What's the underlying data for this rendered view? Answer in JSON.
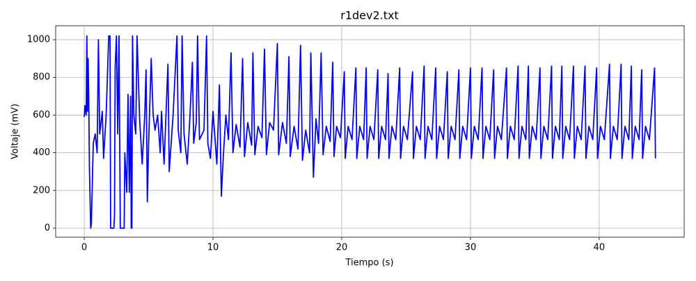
{
  "chart_data": {
    "type": "line",
    "title": "r1dev2.txt",
    "x_label": "Tiempo (s)",
    "y_label": "Voltaje (mV)",
    "grid": true,
    "xlim": [
      -2.22,
      46.6
    ],
    "ylim": [
      -48,
      1074
    ],
    "xticks": [
      0,
      10,
      20,
      30,
      40
    ],
    "yticks": [
      0,
      200,
      400,
      600,
      800,
      1000
    ],
    "series": [
      {
        "color": "#0000ff",
        "x": [
          0,
          0.05,
          0.15,
          0.2,
          0.25,
          0.3,
          0.35,
          0.4,
          0.5,
          0.55,
          0.7,
          0.85,
          1.0,
          1.1,
          1.2,
          1.4,
          1.5,
          1.7,
          1.9,
          2.0,
          2.05,
          2.3,
          2.35,
          2.4,
          2.5,
          2.6,
          2.7,
          2.8,
          3.1,
          3.15,
          3.3,
          3.4,
          3.5,
          3.6,
          3.65,
          3.7,
          3.75,
          3.85,
          4.0,
          4.1,
          4.3,
          4.5,
          4.7,
          4.8,
          4.9,
          5.0,
          5.2,
          5.35,
          5.5,
          5.7,
          5.9,
          6.0,
          6.2,
          6.5,
          6.6,
          6.9,
          7.2,
          7.3,
          7.5,
          7.6,
          7.75,
          8.0,
          8.2,
          8.4,
          8.5,
          8.7,
          8.8,
          8.95,
          9.3,
          9.5,
          9.6,
          9.8,
          10.0,
          10.3,
          10.5,
          10.65,
          10.8,
          11.0,
          11.2,
          11.4,
          11.55,
          11.8,
          12.1,
          12.3,
          12.45,
          12.7,
          13.0,
          13.1,
          13.25,
          13.5,
          13.8,
          14.0,
          14.15,
          14.4,
          14.7,
          15.0,
          15.1,
          15.4,
          15.7,
          15.9,
          16.0,
          16.3,
          16.6,
          16.8,
          16.95,
          17.2,
          17.5,
          17.6,
          17.8,
          18.0,
          18.2,
          18.4,
          18.55,
          18.8,
          19.1,
          19.3,
          19.4,
          19.6,
          19.9,
          20.2,
          20.27,
          20.5,
          20.8,
          21.1,
          21.17,
          21.4,
          21.7,
          21.9,
          21.97,
          22.2,
          22.5,
          22.8,
          22.87,
          23.1,
          23.4,
          23.6,
          23.67,
          23.9,
          24.2,
          24.5,
          24.57,
          24.8,
          25.1,
          25.5,
          25.57,
          25.8,
          26.1,
          26.4,
          26.47,
          26.7,
          27.0,
          27.3,
          27.37,
          27.6,
          27.9,
          28.2,
          28.27,
          28.5,
          28.8,
          29.1,
          29.17,
          29.4,
          29.7,
          30.0,
          30.07,
          30.3,
          30.6,
          30.9,
          30.97,
          31.2,
          31.5,
          31.8,
          31.87,
          32.1,
          32.4,
          32.8,
          32.87,
          33.1,
          33.4,
          33.7,
          33.77,
          34.0,
          34.3,
          34.5,
          34.57,
          34.8,
          35.1,
          35.4,
          35.47,
          35.7,
          36.0,
          36.3,
          36.37,
          36.6,
          36.9,
          37.1,
          37.17,
          37.4,
          37.7,
          38.0,
          38.07,
          38.3,
          38.6,
          38.9,
          38.97,
          39.2,
          39.5,
          39.8,
          39.87,
          40.1,
          40.4,
          40.8,
          40.87,
          41.1,
          41.4,
          41.7,
          41.77,
          42.0,
          42.3,
          42.5,
          42.57,
          42.8,
          43.1,
          43.3,
          43.37,
          43.6,
          43.9,
          44.3,
          44.37
        ],
        "values": [
          590,
          650,
          600,
          1020,
          620,
          900,
          680,
          330,
          0,
          20,
          450,
          500,
          400,
          1000,
          500,
          620,
          370,
          600,
          1020,
          1020,
          0,
          0,
          70,
          850,
          1020,
          500,
          1020,
          0,
          0,
          400,
          190,
          710,
          190,
          700,
          0,
          0,
          1020,
          600,
          500,
          1020,
          580,
          340,
          600,
          840,
          140,
          450,
          900,
          600,
          520,
          600,
          400,
          620,
          340,
          870,
          300,
          600,
          1020,
          520,
          400,
          1020,
          500,
          340,
          580,
          880,
          450,
          560,
          1020,
          470,
          520,
          1020,
          450,
          370,
          620,
          340,
          760,
          170,
          380,
          600,
          470,
          930,
          400,
          550,
          430,
          900,
          380,
          560,
          440,
          930,
          390,
          540,
          480,
          950,
          390,
          560,
          520,
          980,
          390,
          560,
          450,
          910,
          380,
          540,
          420,
          970,
          360,
          520,
          400,
          930,
          270,
          580,
          450,
          930,
          390,
          540,
          460,
          880,
          380,
          540,
          480,
          830,
          370,
          540,
          470,
          850,
          370,
          540,
          470,
          850,
          370,
          540,
          470,
          840,
          370,
          540,
          470,
          820,
          370,
          540,
          470,
          850,
          370,
          540,
          470,
          830,
          370,
          540,
          470,
          860,
          370,
          540,
          470,
          850,
          370,
          540,
          470,
          830,
          370,
          540,
          470,
          840,
          370,
          540,
          470,
          850,
          370,
          540,
          470,
          850,
          370,
          540,
          470,
          840,
          370,
          540,
          470,
          850,
          370,
          540,
          470,
          860,
          370,
          540,
          470,
          860,
          370,
          540,
          470,
          850,
          370,
          540,
          470,
          860,
          370,
          540,
          470,
          860,
          370,
          540,
          470,
          860,
          370,
          540,
          470,
          860,
          370,
          540,
          470,
          850,
          370,
          540,
          470,
          870,
          370,
          540,
          470,
          870,
          370,
          540,
          470,
          860,
          370,
          540,
          470,
          840,
          370,
          540,
          470,
          850,
          370
        ]
      }
    ]
  }
}
